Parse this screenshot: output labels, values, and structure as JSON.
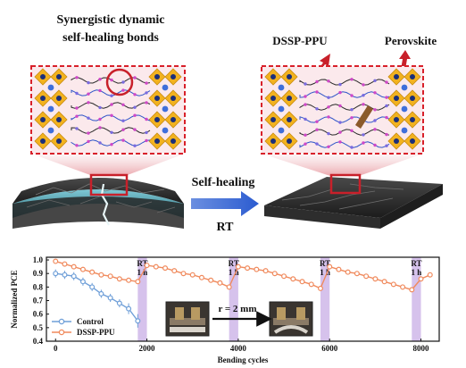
{
  "schematic": {
    "left_title_line1": "Synergistic dynamic",
    "left_title_line2": "self-healing bonds",
    "label_polymer": "DSSP-PPU",
    "label_perovskite": "Perovskite",
    "arrow_label_top": "Self-healing",
    "arrow_label_bottom": "RT"
  },
  "inset": {
    "radius_label": "r = 2 mm"
  },
  "chart_data": {
    "type": "line",
    "xlabel": "Bending cycles",
    "ylabel": "Normalized PCE",
    "xlim": [
      -200,
      8400
    ],
    "ylim": [
      0.4,
      1.02
    ],
    "xticks": [
      "0",
      "2000",
      "4000",
      "6000",
      "8000"
    ],
    "yticks": [
      "0.4",
      "0.5",
      "0.6",
      "0.7",
      "0.8",
      "0.9",
      "1.0"
    ],
    "legend_position": "bottom-left",
    "annotations": [
      {
        "label": "RT",
        "sublabel": "1 h",
        "x_from": 1800,
        "x_to": 2000
      },
      {
        "label": "RT",
        "sublabel": "1 h",
        "x_from": 3800,
        "x_to": 4000
      },
      {
        "label": "RT",
        "sublabel": "1 h",
        "x_from": 5800,
        "x_to": 6000
      },
      {
        "label": "RT",
        "sublabel": "1 h",
        "x_from": 7800,
        "x_to": 8000
      }
    ],
    "series": [
      {
        "name": "Control",
        "color": "#6f9fd8",
        "marker": "circle",
        "x": [
          0,
          200,
          400,
          600,
          800,
          1000,
          1200,
          1400,
          1600,
          1800
        ],
        "y": [
          0.9,
          0.89,
          0.88,
          0.84,
          0.8,
          0.75,
          0.72,
          0.68,
          0.64,
          0.55
        ],
        "err": [
          0.03,
          0.03,
          0.03,
          0.03,
          0.03,
          0.03,
          0.03,
          0.03,
          0.04,
          0.05
        ]
      },
      {
        "name": "DSSP-PPU",
        "color": "#f08a5d",
        "marker": "circle",
        "x": [
          0,
          200,
          400,
          600,
          800,
          1000,
          1200,
          1400,
          1600,
          1800,
          2000,
          2200,
          2400,
          2600,
          2800,
          3000,
          3200,
          3400,
          3600,
          3800,
          4000,
          4200,
          4400,
          4600,
          4800,
          5000,
          5200,
          5400,
          5600,
          5800,
          6000,
          6200,
          6400,
          6600,
          6800,
          7000,
          7200,
          7400,
          7600,
          7800,
          8000,
          8200
        ],
        "y": [
          0.99,
          0.97,
          0.95,
          0.93,
          0.91,
          0.89,
          0.88,
          0.86,
          0.85,
          0.84,
          0.96,
          0.95,
          0.94,
          0.92,
          0.9,
          0.89,
          0.87,
          0.85,
          0.83,
          0.8,
          0.95,
          0.94,
          0.93,
          0.92,
          0.9,
          0.88,
          0.86,
          0.84,
          0.82,
          0.79,
          0.95,
          0.93,
          0.91,
          0.9,
          0.88,
          0.86,
          0.84,
          0.82,
          0.8,
          0.78,
          0.86,
          0.89
        ]
      }
    ]
  },
  "colors": {
    "dashed_frame": "#d8202a",
    "cap_blue": "#3f6fdb",
    "octa_yellow": "#f2b21f",
    "octa_navy": "#1b2f7a",
    "rt_band": "#d6c2ec",
    "panel_fill": "#fbe9ec"
  }
}
